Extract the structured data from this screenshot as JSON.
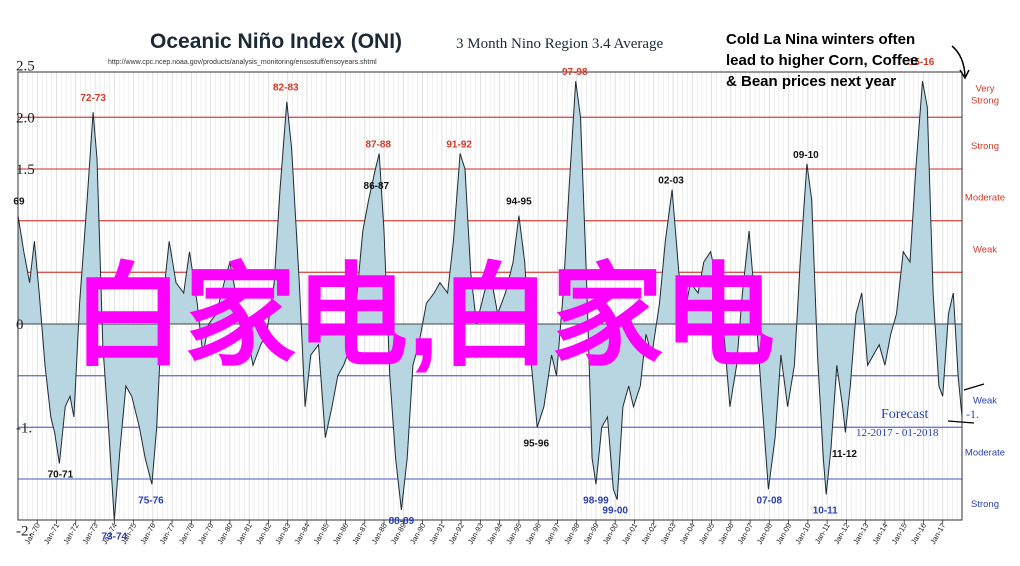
{
  "title": "Oceanic Niño Index (ONI)",
  "subtitle": "3 Month Nino Region 3.4 Average",
  "source_url": "http://www.cpc.ncep.noaa.gov/products/analysis_monitoring/ensostuff/ensoyears.shtml",
  "callout": {
    "lines": [
      "Cold La Nina winters often",
      "lead to higher Corn, Coffee",
      "& Bean prices next year"
    ],
    "color": "#000000"
  },
  "forecast": {
    "label": "Forecast",
    "range": "12-2017 - 01-2018",
    "value_label": "-1.",
    "color": "#2a3fb0"
  },
  "overlay_text": "白家电,白家电",
  "colors": {
    "fill": "#b8d6e2",
    "outline": "#1f2a33",
    "el_nino_lines": "#d9534f",
    "la_nina_lines": "#6b78d8",
    "el_nino_text": "#d03a2a",
    "la_nina_text": "#2a3fb0",
    "overlay": "#ff00ff",
    "grid": "#d8d8d8"
  },
  "chart_data": {
    "type": "area",
    "title": "Oceanic Niño Index (ONI)",
    "subtitle": "3 Month Nino Region 3.4 Average",
    "y_tick_labels": [
      {
        "value": 2.5,
        "label": "2.5"
      },
      {
        "value": 2.0,
        "label": "2.0"
      },
      {
        "value": 1.5,
        "label": "1.5"
      },
      {
        "value": 0.0,
        "label": "0"
      },
      {
        "value": -1.0,
        "label": "-1."
      },
      {
        "value": -2.0,
        "label": "-2."
      }
    ],
    "ylim": [
      -2.0,
      2.5
    ],
    "x_ticks": [
      "Jan-70",
      "Jan-71",
      "Jan-72",
      "Jan-73",
      "Jan-74",
      "Jan-75",
      "Jan-76",
      "Jan-77",
      "Jan-78",
      "Jan-79",
      "Jan-80",
      "Jan-81",
      "Jan-82",
      "Jan-83",
      "Jan-84",
      "Jan-85",
      "Jan-86",
      "Jan-87",
      "Jan-88",
      "Jan-89",
      "Jan-90",
      "Jan-91",
      "Jan-92",
      "Jan-93",
      "Jan-94",
      "Jan-95",
      "Jan-96",
      "Jan-97",
      "Jan-98",
      "Jan-99",
      "Jan-00",
      "Jan-01",
      "Jan-02",
      "Jan-03",
      "Jan-04",
      "Jan-05",
      "Jan-06",
      "Jan-07",
      "Jan-08",
      "Jan-09",
      "Jan-10",
      "Jan-11",
      "Jan-12",
      "Jan-13",
      "Jan-14",
      "Jan-15",
      "Jan-16",
      "Jan-17"
    ],
    "x_start": 1969.0,
    "x_end": 2018.0,
    "thresholds": [
      {
        "value": 2.0,
        "label": "Very Strong",
        "side": "el_nino"
      },
      {
        "value": 1.5,
        "label": "Strong",
        "side": "el_nino"
      },
      {
        "value": 1.0,
        "label": "Moderate",
        "side": "el_nino"
      },
      {
        "value": 0.5,
        "label": "Weak",
        "side": "el_nino"
      },
      {
        "value": -0.5,
        "label": "Weak",
        "side": "la_nina"
      },
      {
        "value": -1.0,
        "label": "Moderate",
        "side": "la_nina"
      },
      {
        "value": -1.5,
        "label": "Strong",
        "side": "la_nina"
      }
    ],
    "annotations": [
      {
        "x": 1969.05,
        "y": 1.1,
        "label": "69",
        "side": "neutral"
      },
      {
        "x": 1971.2,
        "y": -1.35,
        "label": "70-71",
        "side": "neutral"
      },
      {
        "x": 1972.9,
        "y": 2.1,
        "label": "72-73",
        "side": "el_nino"
      },
      {
        "x": 1974.0,
        "y": -1.95,
        "label": "73-74",
        "side": "la_nina"
      },
      {
        "x": 1975.9,
        "y": -1.6,
        "label": "75-76",
        "side": "la_nina"
      },
      {
        "x": 1982.9,
        "y": 2.2,
        "label": "82-83",
        "side": "el_nino"
      },
      {
        "x": 1987.6,
        "y": 1.25,
        "label": "86-87",
        "side": "neutral"
      },
      {
        "x": 1987.7,
        "y": 1.65,
        "label": "87-88",
        "side": "el_nino"
      },
      {
        "x": 1988.9,
        "y": -1.8,
        "label": "88-89",
        "side": "la_nina"
      },
      {
        "x": 1991.9,
        "y": 1.65,
        "label": "91-92",
        "side": "el_nino"
      },
      {
        "x": 1995.0,
        "y": 1.1,
        "label": "94-95",
        "side": "neutral"
      },
      {
        "x": 1995.9,
        "y": -1.05,
        "label": "95-96",
        "side": "neutral"
      },
      {
        "x": 1997.9,
        "y": 2.35,
        "label": "97-98",
        "side": "el_nino"
      },
      {
        "x": 1999.0,
        "y": -1.6,
        "label": "98-99",
        "side": "la_nina"
      },
      {
        "x": 2000.0,
        "y": -1.7,
        "label": "99-00",
        "side": "la_nina"
      },
      {
        "x": 2002.9,
        "y": 1.3,
        "label": "02-03",
        "side": "neutral"
      },
      {
        "x": 2008.0,
        "y": -1.6,
        "label": "07-08",
        "side": "la_nina"
      },
      {
        "x": 2009.9,
        "y": 1.55,
        "label": "09-10",
        "side": "neutral"
      },
      {
        "x": 2010.9,
        "y": -1.7,
        "label": "10-11",
        "side": "la_nina"
      },
      {
        "x": 2011.9,
        "y": -1.15,
        "label": "11-12",
        "side": "neutral"
      },
      {
        "x": 2015.9,
        "y": 2.45,
        "label": "15-16",
        "side": "el_nino"
      }
    ],
    "series": [
      {
        "points": [
          [
            1969.0,
            1.05
          ],
          [
            1969.3,
            0.7
          ],
          [
            1969.6,
            0.4
          ],
          [
            1969.85,
            0.8
          ],
          [
            1970.1,
            0.3
          ],
          [
            1970.4,
            -0.4
          ],
          [
            1970.7,
            -0.9
          ],
          [
            1970.9,
            -1.05
          ],
          [
            1971.15,
            -1.35
          ],
          [
            1971.45,
            -0.8
          ],
          [
            1971.7,
            -0.7
          ],
          [
            1971.9,
            -0.9
          ],
          [
            1972.2,
            0.2
          ],
          [
            1972.55,
            1.1
          ],
          [
            1972.9,
            2.05
          ],
          [
            1973.1,
            1.6
          ],
          [
            1973.4,
            -0.2
          ],
          [
            1973.7,
            -1.0
          ],
          [
            1974.0,
            -1.9
          ],
          [
            1974.3,
            -1.2
          ],
          [
            1974.6,
            -0.6
          ],
          [
            1974.9,
            -0.7
          ],
          [
            1975.3,
            -1.0
          ],
          [
            1975.6,
            -1.3
          ],
          [
            1975.95,
            -1.55
          ],
          [
            1976.2,
            -1.0
          ],
          [
            1976.5,
            0.2
          ],
          [
            1976.85,
            0.8
          ],
          [
            1977.2,
            0.4
          ],
          [
            1977.6,
            0.3
          ],
          [
            1977.9,
            0.7
          ],
          [
            1978.3,
            0.2
          ],
          [
            1978.6,
            -0.3
          ],
          [
            1978.9,
            0.0
          ],
          [
            1979.3,
            0.1
          ],
          [
            1979.7,
            0.4
          ],
          [
            1980.0,
            0.6
          ],
          [
            1980.4,
            0.2
          ],
          [
            1980.8,
            0.0
          ],
          [
            1981.2,
            -0.4
          ],
          [
            1981.6,
            -0.2
          ],
          [
            1981.9,
            -0.1
          ],
          [
            1982.3,
            0.4
          ],
          [
            1982.6,
            1.3
          ],
          [
            1982.95,
            2.15
          ],
          [
            1983.2,
            1.7
          ],
          [
            1983.6,
            0.4
          ],
          [
            1983.9,
            -0.8
          ],
          [
            1984.2,
            -0.3
          ],
          [
            1984.6,
            -0.2
          ],
          [
            1984.95,
            -1.1
          ],
          [
            1985.3,
            -0.8
          ],
          [
            1985.6,
            -0.5
          ],
          [
            1985.9,
            -0.4
          ],
          [
            1986.3,
            -0.2
          ],
          [
            1986.6,
            0.3
          ],
          [
            1986.9,
            0.9
          ],
          [
            1987.2,
            1.2
          ],
          [
            1987.55,
            1.5
          ],
          [
            1987.75,
            1.65
          ],
          [
            1988.0,
            0.9
          ],
          [
            1988.3,
            -0.5
          ],
          [
            1988.6,
            -1.3
          ],
          [
            1988.9,
            -1.8
          ],
          [
            1989.2,
            -1.3
          ],
          [
            1989.5,
            -0.4
          ],
          [
            1989.8,
            -0.2
          ],
          [
            1990.2,
            0.2
          ],
          [
            1990.6,
            0.3
          ],
          [
            1990.9,
            0.4
          ],
          [
            1991.3,
            0.3
          ],
          [
            1991.6,
            0.8
          ],
          [
            1991.95,
            1.65
          ],
          [
            1992.2,
            1.5
          ],
          [
            1992.5,
            0.5
          ],
          [
            1992.8,
            0.0
          ],
          [
            1993.2,
            0.3
          ],
          [
            1993.5,
            0.5
          ],
          [
            1993.9,
            0.1
          ],
          [
            1994.3,
            0.3
          ],
          [
            1994.7,
            0.6
          ],
          [
            1995.0,
            1.05
          ],
          [
            1995.3,
            0.6
          ],
          [
            1995.6,
            -0.3
          ],
          [
            1995.95,
            -1.0
          ],
          [
            1996.3,
            -0.8
          ],
          [
            1996.7,
            -0.3
          ],
          [
            1996.95,
            -0.5
          ],
          [
            1997.3,
            0.3
          ],
          [
            1997.6,
            1.3
          ],
          [
            1997.95,
            2.35
          ],
          [
            1998.2,
            2.0
          ],
          [
            1998.5,
            0.5
          ],
          [
            1998.8,
            -1.3
          ],
          [
            1999.0,
            -1.55
          ],
          [
            1999.3,
            -1.0
          ],
          [
            1999.6,
            -0.9
          ],
          [
            1999.9,
            -1.6
          ],
          [
            2000.1,
            -1.7
          ],
          [
            2000.4,
            -0.8
          ],
          [
            2000.7,
            -0.6
          ],
          [
            2000.95,
            -0.8
          ],
          [
            2001.3,
            -0.6
          ],
          [
            2001.6,
            -0.1
          ],
          [
            2001.9,
            -0.3
          ],
          [
            2002.3,
            0.2
          ],
          [
            2002.6,
            0.8
          ],
          [
            2002.95,
            1.3
          ],
          [
            2003.3,
            0.5
          ],
          [
            2003.6,
            0.1
          ],
          [
            2003.9,
            0.4
          ],
          [
            2004.3,
            0.3
          ],
          [
            2004.6,
            0.6
          ],
          [
            2004.95,
            0.7
          ],
          [
            2005.3,
            0.4
          ],
          [
            2005.6,
            0.0
          ],
          [
            2005.95,
            -0.8
          ],
          [
            2006.3,
            -0.4
          ],
          [
            2006.6,
            0.3
          ],
          [
            2006.95,
            0.9
          ],
          [
            2007.3,
            0.1
          ],
          [
            2007.6,
            -0.7
          ],
          [
            2007.95,
            -1.6
          ],
          [
            2008.3,
            -1.1
          ],
          [
            2008.6,
            -0.3
          ],
          [
            2008.95,
            -0.8
          ],
          [
            2009.3,
            -0.4
          ],
          [
            2009.6,
            0.6
          ],
          [
            2009.95,
            1.55
          ],
          [
            2010.2,
            1.2
          ],
          [
            2010.5,
            -0.3
          ],
          [
            2010.8,
            -1.3
          ],
          [
            2010.95,
            -1.65
          ],
          [
            2011.2,
            -1.2
          ],
          [
            2011.5,
            -0.4
          ],
          [
            2011.8,
            -0.8
          ],
          [
            2011.95,
            -1.05
          ],
          [
            2012.2,
            -0.6
          ],
          [
            2012.5,
            0.1
          ],
          [
            2012.8,
            0.3
          ],
          [
            2013.1,
            -0.4
          ],
          [
            2013.4,
            -0.3
          ],
          [
            2013.7,
            -0.2
          ],
          [
            2014.0,
            -0.4
          ],
          [
            2014.3,
            -0.1
          ],
          [
            2014.6,
            0.1
          ],
          [
            2014.95,
            0.7
          ],
          [
            2015.3,
            0.6
          ],
          [
            2015.6,
            1.5
          ],
          [
            2015.95,
            2.35
          ],
          [
            2016.2,
            2.1
          ],
          [
            2016.5,
            0.3
          ],
          [
            2016.8,
            -0.6
          ],
          [
            2017.0,
            -0.7
          ],
          [
            2017.3,
            0.1
          ],
          [
            2017.55,
            0.3
          ],
          [
            2017.8,
            -0.5
          ],
          [
            2018.0,
            -0.9
          ]
        ]
      }
    ]
  }
}
